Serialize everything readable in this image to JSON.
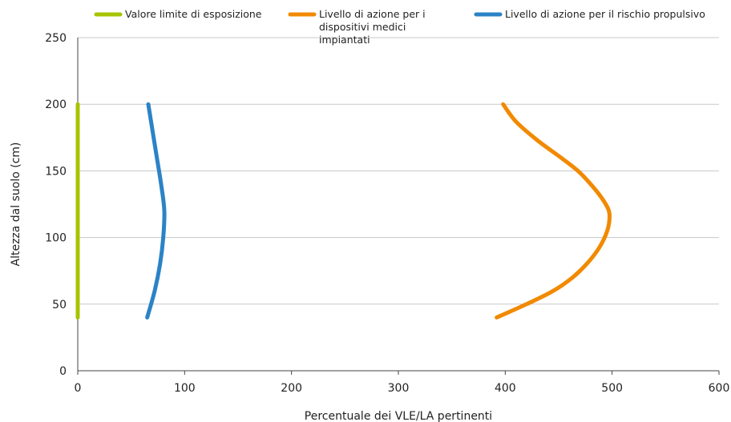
{
  "chart_data": {
    "type": "line",
    "xlabel": "Percentuale dei VLE/LA pertinenti",
    "ylabel": "Altezza dal suolo (cm)",
    "xlim": [
      0,
      600
    ],
    "ylim": [
      0,
      250
    ],
    "xticks": [
      0,
      100,
      200,
      300,
      400,
      500,
      600
    ],
    "yticks": [
      0,
      50,
      100,
      150,
      200,
      250
    ],
    "grid": "horizontal",
    "legend_position": "top",
    "series": [
      {
        "name": "Valore limite di esposizione",
        "color": "#a7c400",
        "points": [
          [
            0,
            40
          ],
          [
            0,
            60
          ],
          [
            0,
            80
          ],
          [
            0,
            100
          ],
          [
            0,
            120
          ],
          [
            0,
            140
          ],
          [
            0,
            160
          ],
          [
            0,
            180
          ],
          [
            0,
            200
          ]
        ]
      },
      {
        "name": "Livello di azione per i dispositivi medici impiantati",
        "color": "#f18a00",
        "points": [
          [
            392,
            40
          ],
          [
            420,
            50
          ],
          [
            445,
            60
          ],
          [
            463,
            70
          ],
          [
            476,
            80
          ],
          [
            486,
            90
          ],
          [
            493,
            100
          ],
          [
            497,
            110
          ],
          [
            497,
            120
          ],
          [
            490,
            130
          ],
          [
            480,
            140
          ],
          [
            468,
            150
          ],
          [
            452,
            160
          ],
          [
            430,
            173
          ],
          [
            410,
            187
          ],
          [
            398,
            200
          ]
        ]
      },
      {
        "name": "Livello di azione per il rischio propulsivo",
        "color": "#2b83c6",
        "points": [
          [
            65,
            40
          ],
          [
            72,
            60
          ],
          [
            77,
            80
          ],
          [
            80,
            100
          ],
          [
            81,
            120
          ],
          [
            78,
            140
          ],
          [
            74,
            160
          ],
          [
            70,
            180
          ],
          [
            66,
            200
          ]
        ]
      }
    ]
  }
}
